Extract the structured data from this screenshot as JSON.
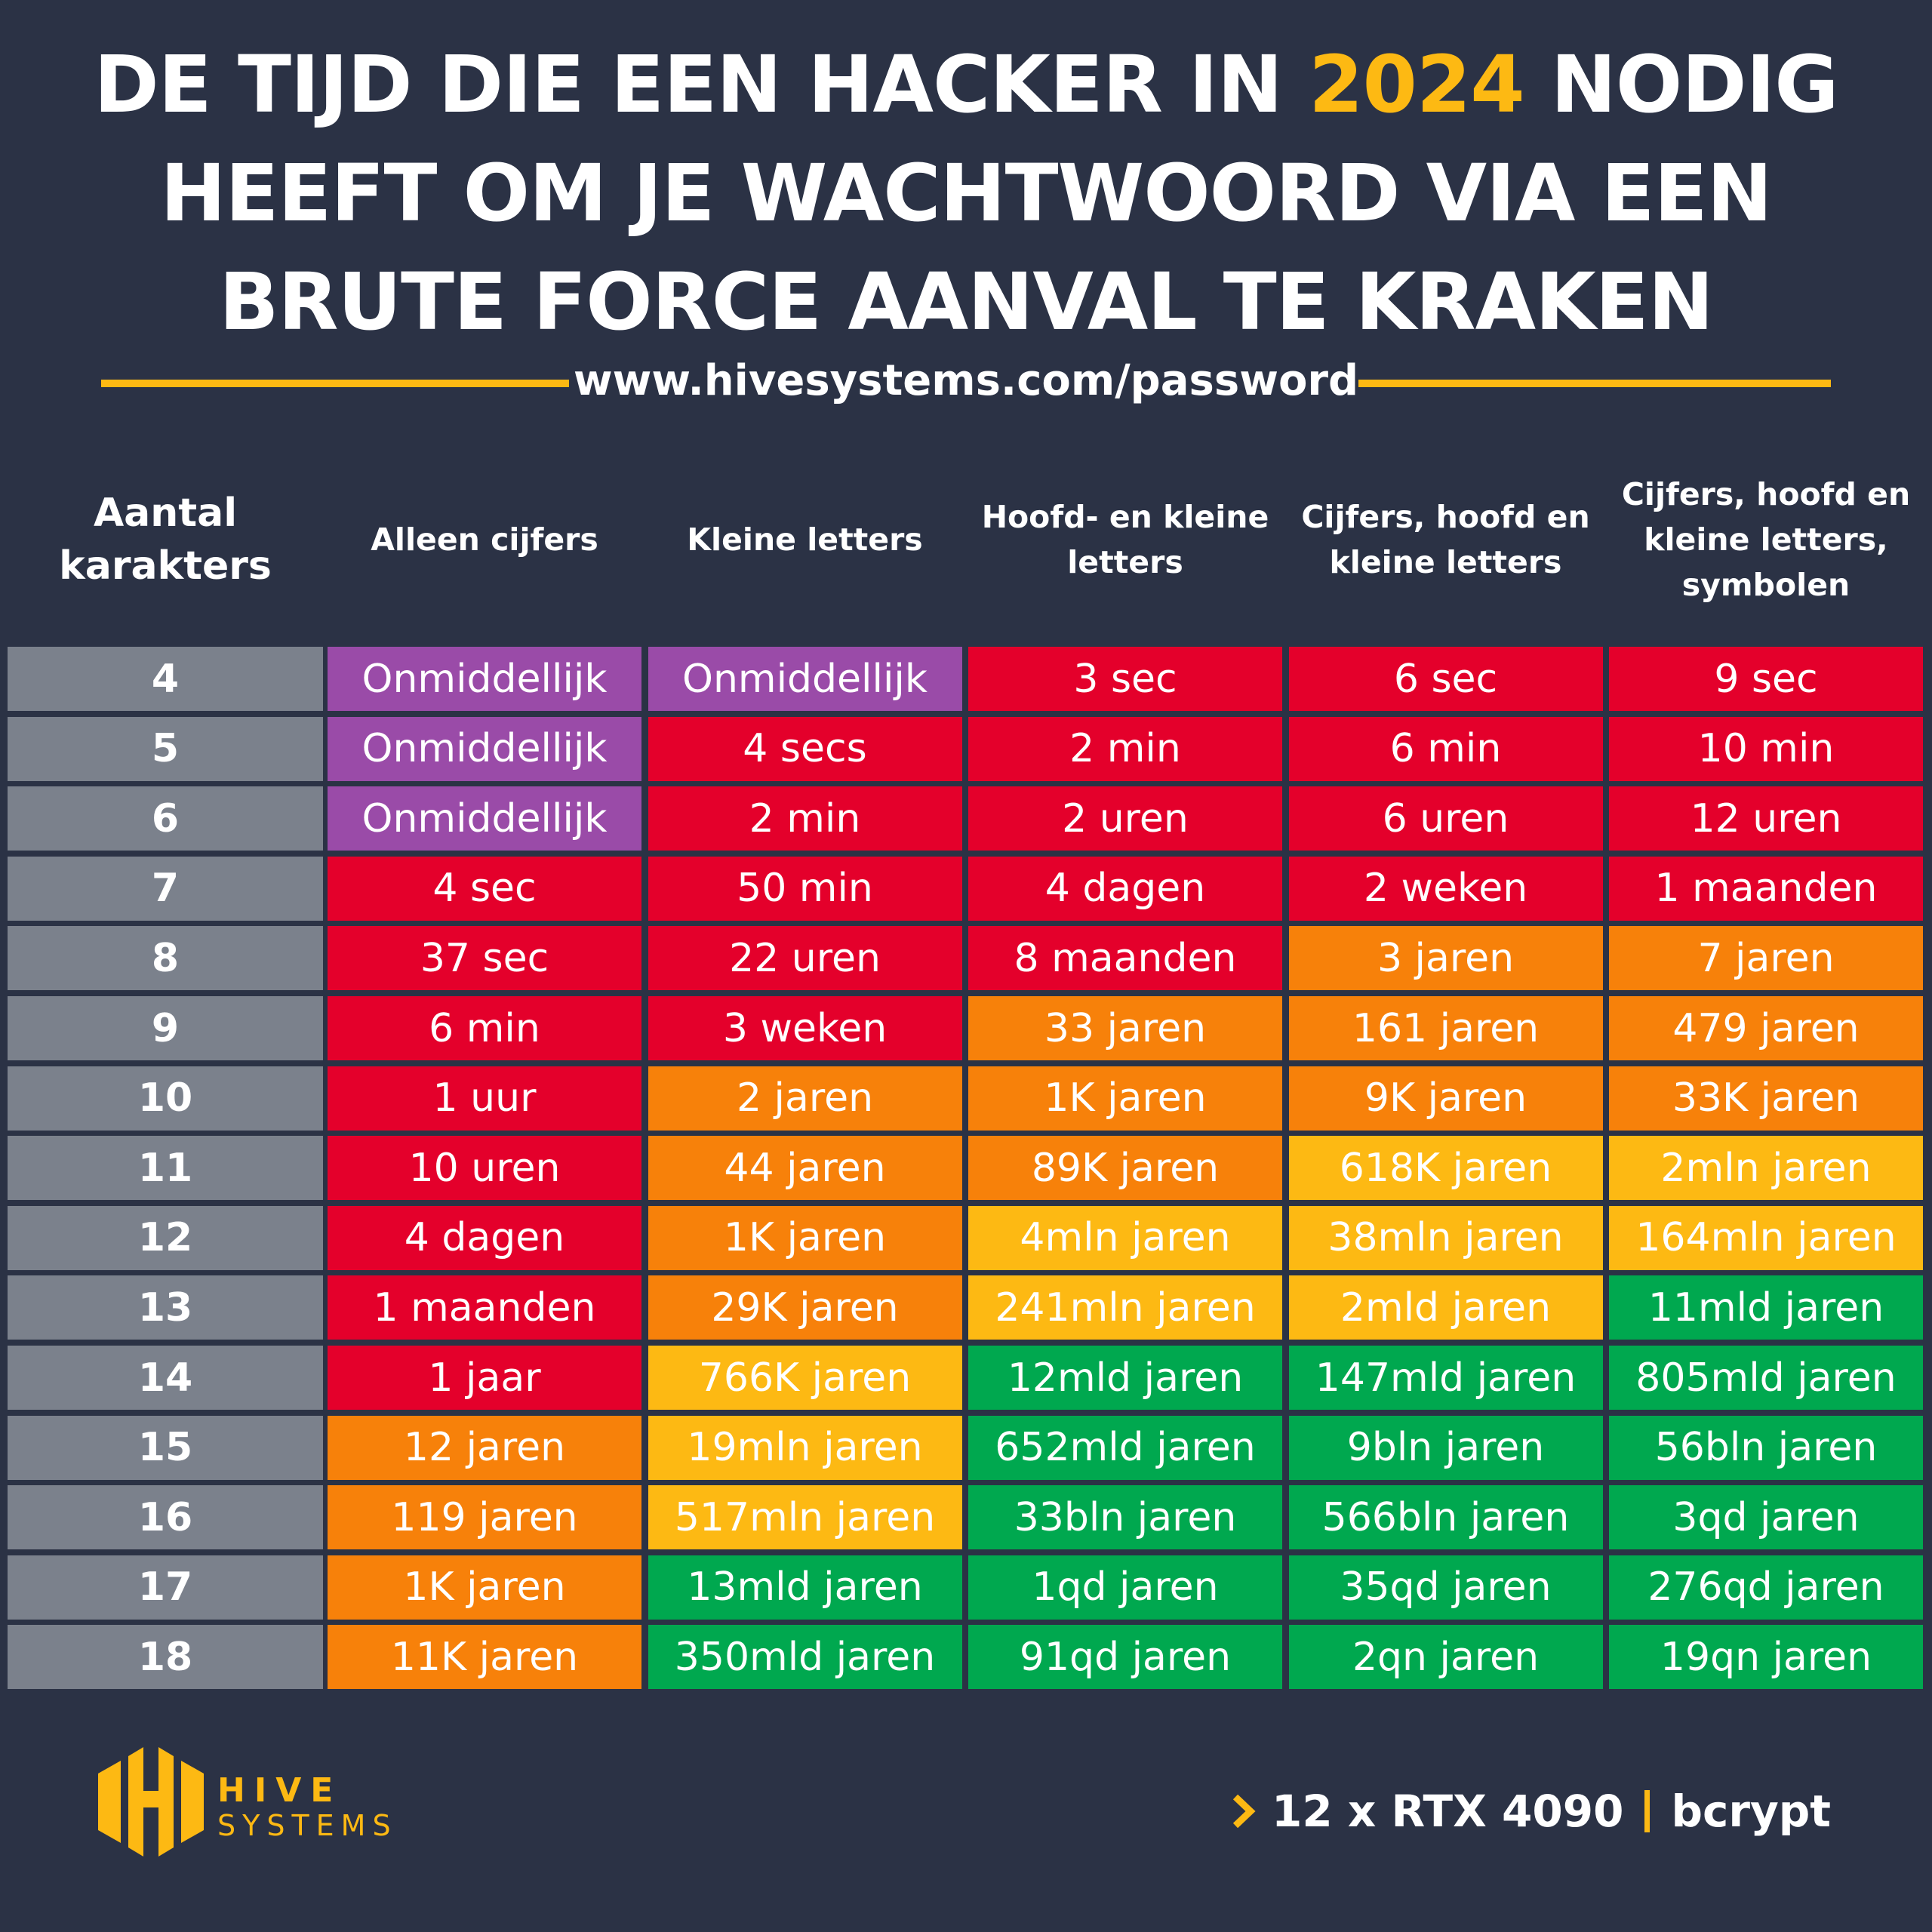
{
  "header": {
    "title": [
      "DE TIJD DIE EEN HACKER IN ",
      "2024",
      " NODIG HEEFT OM JE WACHTWOORD VIA EEN BRUTE FORCE AANVAL TE KRAKEN"
    ],
    "url": "www.hivesystems.com/password"
  },
  "table": {
    "columns": [
      "Aantal karakters",
      "Alleen cijfers",
      "Kleine letters",
      "Hoofd- en kleine letters",
      "Cijfers, hoofd en kleine letters",
      "Cijfers, hoofd en kleine letters, symbolen"
    ],
    "rows": [
      {
        "label": "4",
        "cells": [
          "Onmiddellijk",
          "Onmiddellijk",
          "3 sec",
          "6 sec",
          "9 sec"
        ],
        "colors": [
          "#9a4ba8",
          "#9a4ba8",
          "#e4002b",
          "#e4002b",
          "#e4002b"
        ]
      },
      {
        "label": "5",
        "cells": [
          "Onmiddellijk",
          "4 secs",
          "2 min",
          "6 min",
          "10 min"
        ],
        "colors": [
          "#9a4ba8",
          "#e4002b",
          "#e4002b",
          "#e4002b",
          "#e4002b"
        ]
      },
      {
        "label": "6",
        "cells": [
          "Onmiddellijk",
          "2 min",
          "2 uren",
          "6 uren",
          "12 uren"
        ],
        "colors": [
          "#9a4ba8",
          "#e4002b",
          "#e4002b",
          "#e4002b",
          "#e4002b"
        ]
      },
      {
        "label": "7",
        "cells": [
          "4 sec",
          "50 min",
          "4 dagen",
          "2 weken",
          "1 maanden"
        ],
        "colors": [
          "#e4002b",
          "#e4002b",
          "#e4002b",
          "#e4002b",
          "#e4002b"
        ]
      },
      {
        "label": "8",
        "cells": [
          "37 sec",
          "22 uren",
          "8 maanden",
          "3 jaren",
          "7 jaren"
        ],
        "colors": [
          "#e4002b",
          "#e4002b",
          "#e4002b",
          "#f7810a",
          "#f7810a"
        ]
      },
      {
        "label": "9",
        "cells": [
          "6 min",
          "3 weken",
          "33 jaren",
          "161 jaren",
          "479 jaren"
        ],
        "colors": [
          "#e4002b",
          "#e4002b",
          "#f7810a",
          "#f7810a",
          "#f7810a"
        ]
      },
      {
        "label": "10",
        "cells": [
          "1 uur",
          "2 jaren",
          "1K jaren",
          "9K jaren",
          "33K jaren"
        ],
        "colors": [
          "#e4002b",
          "#f7810a",
          "#f7810a",
          "#f7810a",
          "#f7810a"
        ]
      },
      {
        "label": "11",
        "cells": [
          "10 uren",
          "44 jaren",
          "89K jaren",
          "618K jaren",
          "2mln jaren"
        ],
        "colors": [
          "#e4002b",
          "#f7810a",
          "#f7810a",
          "#fdb913",
          "#fdb913"
        ]
      },
      {
        "label": "12",
        "cells": [
          "4 dagen",
          "1K jaren",
          "4mln jaren",
          "38mln jaren",
          "164mln jaren"
        ],
        "colors": [
          "#e4002b",
          "#f7810a",
          "#fdb913",
          "#fdb913",
          "#fdb913"
        ]
      },
      {
        "label": "13",
        "cells": [
          "1 maanden",
          "29K jaren",
          "241mln jaren",
          "2mld jaren",
          "11mld jaren"
        ],
        "colors": [
          "#e4002b",
          "#f7810a",
          "#fdb913",
          "#fdb913",
          "#00a84f"
        ]
      },
      {
        "label": "14",
        "cells": [
          "1 jaar",
          "766K jaren",
          "12mld jaren",
          "147mld jaren",
          "805mld jaren"
        ],
        "colors": [
          "#e4002b",
          "#fdb913",
          "#00a84f",
          "#00a84f",
          "#00a84f"
        ]
      },
      {
        "label": "15",
        "cells": [
          "12 jaren",
          "19mln jaren",
          "652mld jaren",
          "9bln jaren",
          "56bln jaren"
        ],
        "colors": [
          "#f7810a",
          "#fdb913",
          "#00a84f",
          "#00a84f",
          "#00a84f"
        ]
      },
      {
        "label": "16",
        "cells": [
          "119 jaren",
          "517mln jaren",
          "33bln jaren",
          "566bln jaren",
          "3qd jaren"
        ],
        "colors": [
          "#f7810a",
          "#fdb913",
          "#00a84f",
          "#00a84f",
          "#00a84f"
        ]
      },
      {
        "label": "17",
        "cells": [
          "1K jaren",
          "13mld jaren",
          "1qd jaren",
          "35qd jaren",
          "276qd jaren"
        ],
        "colors": [
          "#f7810a",
          "#00a84f",
          "#00a84f",
          "#00a84f",
          "#00a84f"
        ]
      },
      {
        "label": "18",
        "cells": [
          "11K jaren",
          "350mld jaren",
          "91qd jaren",
          "2qn jaren",
          "19qn jaren"
        ],
        "colors": [
          "#f7810a",
          "#00a84f",
          "#00a84f",
          "#00a84f",
          "#00a84f"
        ]
      }
    ]
  },
  "footer": {
    "logo_name": "HIVE",
    "logo_sub": "SYSTEMS",
    "hardware": "12 x RTX 4090",
    "algorithm": "bcrypt"
  }
}
